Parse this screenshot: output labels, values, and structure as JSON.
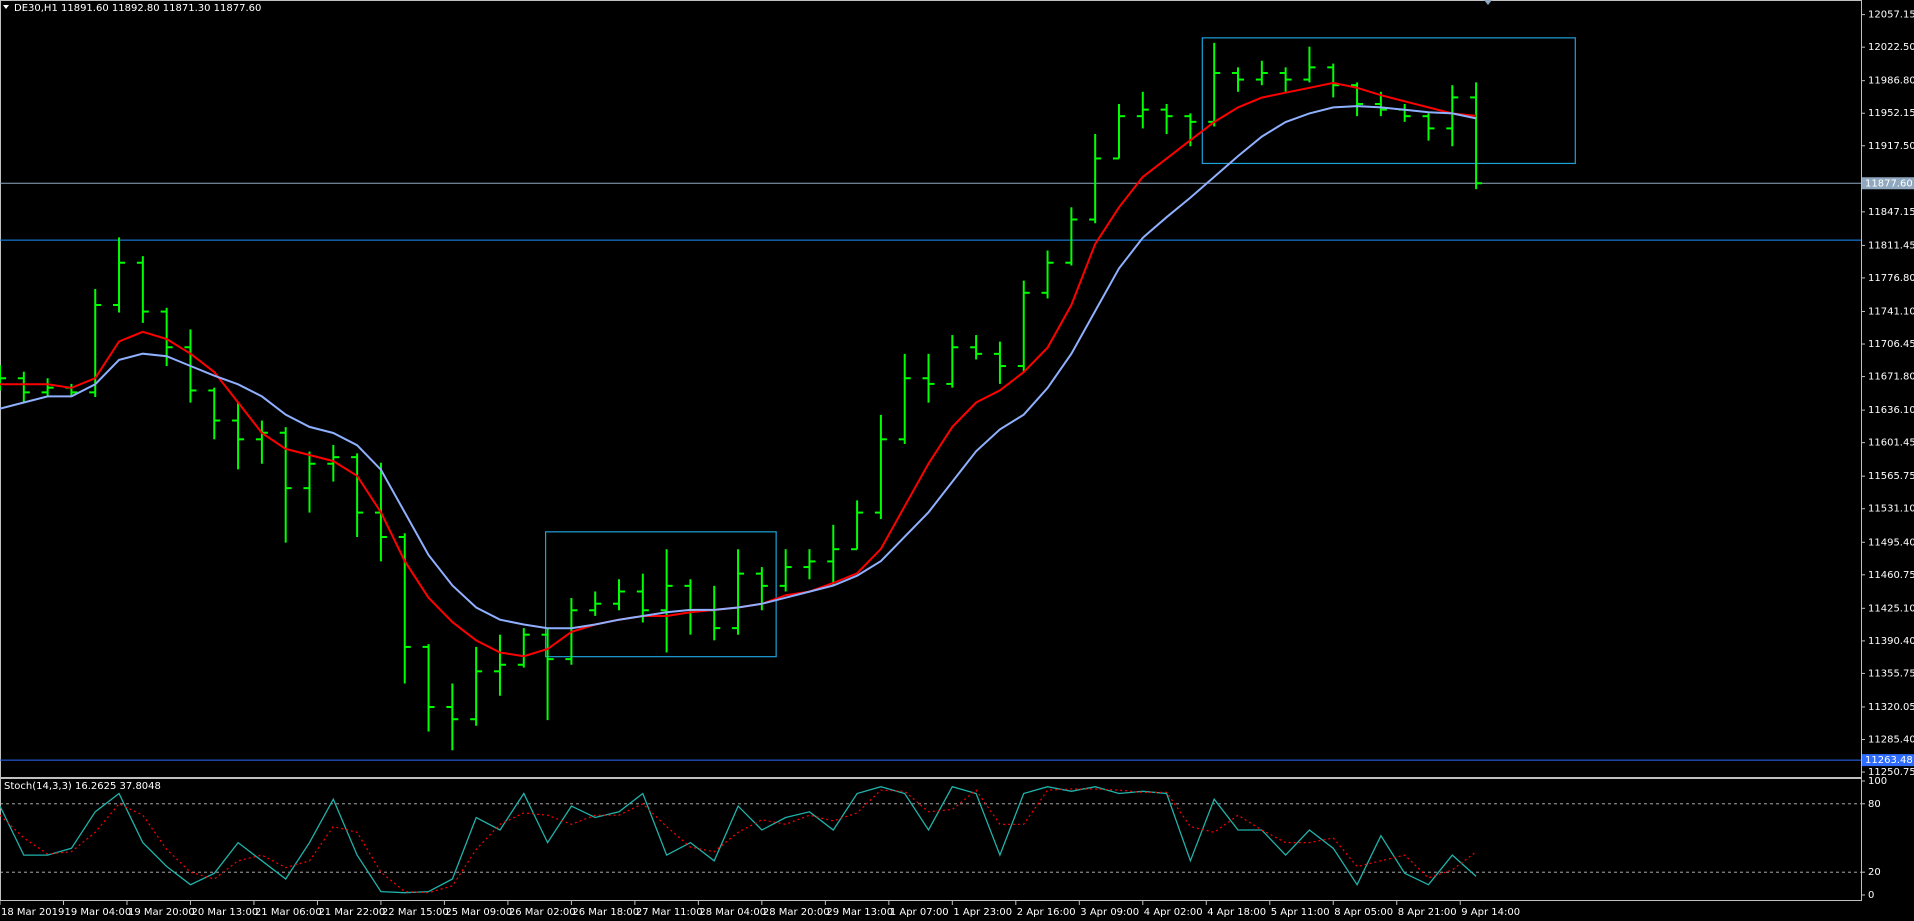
{
  "chart_data": [
    {
      "type": "ohlc",
      "title": "DE30,H1  11891.60 11892.80 11871.30 11877.60",
      "color": "#00ff00",
      "x": [
        0,
        6,
        12,
        18,
        24,
        30,
        36,
        42,
        48,
        54,
        60,
        66,
        72,
        78,
        84,
        90,
        96,
        102,
        108,
        114,
        120,
        126,
        132,
        138,
        144,
        150,
        156,
        162,
        168,
        174,
        180,
        186,
        192,
        198,
        204,
        210,
        216,
        222,
        228,
        234,
        240,
        246,
        252,
        258,
        264,
        270,
        276,
        282,
        288,
        294,
        300,
        306,
        312,
        318,
        324,
        330,
        336,
        342,
        348,
        354,
        360,
        366,
        372
      ],
      "open": [
        11660,
        11670,
        11655,
        11660,
        11655,
        11748,
        11793,
        11741,
        11703,
        11657,
        11625,
        11605,
        11612,
        11553,
        11579,
        11586,
        11527,
        11501,
        11384,
        11320,
        11307,
        11358,
        11365,
        11397,
        11371,
        11423,
        11430,
        11443,
        11423,
        11449,
        11423,
        11404,
        11462,
        11449,
        11469,
        11475,
        11488,
        11527,
        11605,
        11670,
        11664,
        11703,
        11696,
        11683,
        11761,
        11793,
        11839,
        11904,
        11949,
        11956,
        11949,
        11943,
        11995,
        11988,
        11995,
        11988,
        12001,
        11982,
        11962,
        11956,
        11949,
        11936,
        11969
      ],
      "high": [
        11684,
        11677,
        11670,
        11664,
        11765,
        11820,
        11800,
        11745,
        11722,
        11660,
        11644,
        11625,
        11618,
        11592,
        11599,
        11590,
        11580,
        11505,
        11387,
        11345,
        11384,
        11397,
        11404,
        11404,
        11436,
        11443,
        11456,
        11462,
        11488,
        11456,
        11449,
        11488,
        11469,
        11488,
        11488,
        11514,
        11540,
        11631,
        11696,
        11696,
        11716,
        11716,
        11709,
        11774,
        11806,
        11852,
        11930,
        11962,
        11975,
        11962,
        11952,
        12027,
        12001,
        12008,
        12001,
        12023,
        12005,
        11985,
        11975,
        11962,
        11952,
        11982,
        11985
      ],
      "low": [
        11657,
        11644,
        11651,
        11651,
        11650,
        11740,
        11729,
        11683,
        11644,
        11605,
        11573,
        11579,
        11495,
        11527,
        11560,
        11501,
        11475,
        11345,
        11294,
        11274,
        11300,
        11332,
        11362,
        11306,
        11365,
        11417,
        11423,
        11410,
        11378,
        11397,
        11391,
        11397,
        11423,
        11443,
        11456,
        11449,
        11488,
        11520,
        11600,
        11644,
        11660,
        11690,
        11664,
        11676,
        11755,
        11790,
        11835,
        11904,
        11936,
        11930,
        11917,
        11938,
        11975,
        11982,
        11975,
        11985,
        11969,
        11949,
        11949,
        11943,
        11923,
        11917,
        11871.3
      ],
      "close": [
        11670,
        11655,
        11660,
        11655,
        11748,
        11793,
        11741,
        11703,
        11657,
        11625,
        11605,
        11612,
        11553,
        11579,
        11586,
        11527,
        11501,
        11384,
        11320,
        11307,
        11358,
        11365,
        11397,
        11371,
        11423,
        11430,
        11443,
        11423,
        11449,
        11423,
        11404,
        11462,
        11449,
        11469,
        11475,
        11488,
        11527,
        11605,
        11670,
        11664,
        11703,
        11696,
        11683,
        11761,
        11793,
        11839,
        11904,
        11949,
        11956,
        11949,
        11943,
        11995,
        11988,
        11995,
        11988,
        12001,
        11982,
        11962,
        11956,
        11949,
        11936,
        11969,
        11877.6
      ],
      "series": [
        {
          "color": "#ff0000",
          "values": [
            11663.6,
            11663.6,
            11663.6,
            11659.7,
            11670.1,
            11709.1,
            11719.5,
            11711.7,
            11696.1,
            11676.6,
            11644.2,
            11611.7,
            11594.8,
            11588.3,
            11581.8,
            11566.2,
            11527.3,
            11475.3,
            11436.4,
            11410.4,
            11390.9,
            11378.0,
            11374.1,
            11381.8,
            11400.0,
            11407.8,
            11413.0,
            11416.9,
            11416.9,
            11420.8,
            11423.4,
            11426.0,
            11429.9,
            11439.0,
            11442.9,
            11452.0,
            11462.4,
            11488.3,
            11533.8,
            11579.2,
            11618.2,
            11644.2,
            11657.1,
            11676.6,
            11702.6,
            11748.1,
            11813.0,
            11852.0,
            11884.4,
            11903.9,
            11923.4,
            11942.8,
            11958.4,
            11968.8,
            11974.0,
            11979.2,
            11984.4,
            11979.2,
            11971.4,
            11964.9,
            11958.4,
            11951.9,
            11949.3
          ]
        },
        {
          "color": "#8fb0ff",
          "values": [
            11637.7,
            11644.2,
            11650.7,
            11650.7,
            11663.6,
            11689.6,
            11696.1,
            11693.5,
            11683.1,
            11672.7,
            11663.6,
            11650.7,
            11631.2,
            11618.2,
            11611.7,
            11598.7,
            11572.7,
            11527.3,
            11481.8,
            11449.4,
            11426.0,
            11413.0,
            11407.8,
            11403.9,
            11403.9,
            11407.8,
            11413.0,
            11416.9,
            11420.8,
            11423.4,
            11423.4,
            11426.0,
            11429.9,
            11436.4,
            11442.9,
            11449.4,
            11459.8,
            11475.3,
            11501.3,
            11527.3,
            11559.8,
            11592.2,
            11615.6,
            11631.2,
            11659.7,
            11696.1,
            11741.6,
            11787.0,
            11819.5,
            11841.5,
            11862.3,
            11884.4,
            11906.5,
            11927.3,
            11942.8,
            11952.0,
            11958.4,
            11959.7,
            11958.4,
            11955.8,
            11953.2,
            11952.0,
            11946.7
          ]
        }
      ],
      "hlines": [
        {
          "value": 11877.6,
          "label": "11877.60",
          "color": "#8fa8c0"
        },
        {
          "value": 11817,
          "color": "#1e90ff"
        },
        {
          "value": 11263.48,
          "label": "11263.48",
          "color": "#2d6cff"
        }
      ],
      "rectangles": [
        {
          "x0": 137.5,
          "x1": 195.6,
          "y0": 11506.5,
          "y1": 11373.6,
          "color": "#1ea0d8"
        },
        {
          "x0": 303,
          "x1": 397,
          "y0": 12032.4,
          "y1": 11898.7,
          "color": "#1ea0d8"
        }
      ],
      "xlim": [
        0,
        469
      ],
      "ylim": [
        11245.5,
        12072.7
      ],
      "yticks": [
        11250.75,
        {
          "value": 11285.4,
          "label": "11285.40"
        },
        11320.05,
        11355.75,
        {
          "value": 11390.4,
          "label": "11390.40"
        },
        {
          "value": 11425.1,
          "label": "11425.10"
        },
        11460.75,
        {
          "value": 11495.4,
          "label": "11495.40"
        },
        {
          "value": 11531.1,
          "label": "11531.10"
        },
        11565.75,
        11601.45,
        {
          "value": 11636.1,
          "label": "11636.10"
        },
        {
          "value": 11671.8,
          "label": "11671.80"
        },
        11706.45,
        {
          "value": 11741.1,
          "label": "11741.10"
        },
        {
          "value": 11776.8,
          "label": "11776.80"
        },
        11811.45,
        11847.15,
        {
          "value": 11917.5,
          "label": "11917.50"
        },
        11952.15,
        {
          "value": 11986.8,
          "label": "11986.80"
        },
        {
          "value": 12022.5,
          "label": "12022.50"
        },
        12057.15
      ]
    },
    {
      "type": "line",
      "title": "Stoch(14,3,3) 16.2625 37.8048",
      "x": [
        0,
        6,
        12,
        18,
        24,
        30,
        36,
        42,
        48,
        54,
        60,
        66,
        72,
        78,
        84,
        90,
        96,
        102,
        108,
        114,
        120,
        126,
        132,
        138,
        144,
        150,
        156,
        162,
        168,
        174,
        180,
        186,
        192,
        198,
        204,
        210,
        216,
        222,
        228,
        234,
        240,
        246,
        252,
        258,
        264,
        270,
        276,
        282,
        288,
        294,
        300,
        306,
        312,
        318,
        324,
        330,
        336,
        342,
        348,
        354,
        360,
        366,
        372
      ],
      "series": [
        {
          "color": "#20b2aa",
          "values": [
            78,
            35,
            35,
            41,
            73,
            89,
            46,
            25,
            9,
            19,
            46,
            30,
            14,
            46,
            84,
            35,
            3,
            2,
            3,
            14,
            68,
            57,
            89,
            46,
            78,
            68,
            73,
            89,
            35,
            46,
            30,
            78,
            57,
            68,
            73,
            57,
            89,
            95,
            89,
            57,
            95,
            89,
            35,
            89,
            95,
            91,
            95,
            89,
            91,
            89,
            30,
            84,
            57,
            57,
            35,
            57,
            41,
            9,
            52,
            19,
            9,
            35,
            16.3
          ]
        },
        {
          "color": "#ff0000",
          "dashed": true,
          "values": [
            70,
            50,
            36,
            38,
            55,
            80,
            70,
            40,
            20,
            14,
            30,
            35,
            24,
            30,
            60,
            55,
            20,
            3,
            2,
            8,
            40,
            62,
            72,
            70,
            62,
            70,
            70,
            80,
            60,
            42,
            38,
            55,
            66,
            62,
            70,
            65,
            72,
            92,
            91,
            73,
            75,
            92,
            62,
            62,
            92,
            93,
            93,
            92,
            90,
            90,
            60,
            55,
            70,
            57,
            46,
            46,
            50,
            25,
            30,
            35,
            15,
            22,
            37.8
          ]
        }
      ],
      "levels": [
        20,
        80
      ],
      "xlim": [
        0,
        469
      ],
      "ylim": [
        0,
        100
      ],
      "yticks": [
        0,
        20,
        80,
        100
      ],
      "xticks": [
        {
          "value": 0,
          "label": "18 Mar 2019"
        },
        {
          "value": 16,
          "label": "19 Mar 04:00"
        },
        {
          "value": 32,
          "label": "19 Mar 20:00"
        },
        {
          "value": 48,
          "label": "20 Mar 13:00"
        },
        {
          "value": 64,
          "label": "21 Mar 06:00"
        },
        {
          "value": 80,
          "label": "21 Mar 22:00"
        },
        {
          "value": 96,
          "label": "22 Mar 15:00"
        },
        {
          "value": 112,
          "label": "25 Mar 09:00"
        },
        {
          "value": 128,
          "label": "26 Mar 02:00"
        },
        {
          "value": 144,
          "label": "26 Mar 18:00"
        },
        {
          "value": 160,
          "label": "27 Mar 11:00"
        },
        {
          "value": 176,
          "label": "28 Mar 04:00"
        },
        {
          "value": 192,
          "label": "28 Mar 20:00"
        },
        {
          "value": 208,
          "label": "29 Mar 13:00"
        },
        {
          "value": 224,
          "label": "1 Apr 07:00"
        },
        {
          "value": 240,
          "label": "1 Apr 23:00"
        },
        {
          "value": 256,
          "label": "2 Apr 16:00"
        },
        {
          "value": 272,
          "label": "3 Apr 09:00"
        },
        {
          "value": 288,
          "label": "4 Apr 02:00"
        },
        {
          "value": 304,
          "label": "4 Apr 18:00"
        },
        {
          "value": 320,
          "label": "5 Apr 11:00"
        },
        {
          "value": 336,
          "label": "8 Apr 05:00"
        },
        {
          "value": 352,
          "label": "8 Apr 21:00"
        },
        {
          "value": 368,
          "label": "9 Apr 14:00"
        }
      ]
    }
  ]
}
